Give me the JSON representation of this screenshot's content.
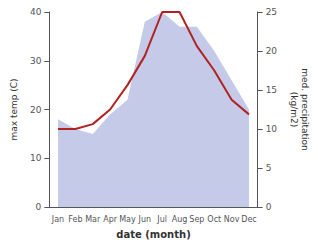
{
  "chart_data": {
    "type": "line",
    "categories": [
      "Jan",
      "Feb",
      "Mar",
      "Apr",
      "May",
      "Jun",
      "Jul",
      "Aug",
      "Sep",
      "Oct",
      "Nov",
      "Dec"
    ],
    "series": [
      {
        "type": "area",
        "color": "#b0b8e0",
        "values": [
          18,
          16,
          15,
          19,
          22,
          38,
          40,
          37,
          37,
          32,
          26,
          20
        ]
      },
      {
        "type": "line",
        "color": "#b22222",
        "values": [
          16,
          16,
          17,
          20,
          25,
          31,
          40,
          40,
          33,
          28,
          22,
          19
        ]
      }
    ],
    "xlabel": "date (month)",
    "ylabel": "max temp (C)",
    "y2label": "med. precipitation\n(kg/m2)",
    "ylim": [
      0,
      40
    ],
    "yticks": [
      0,
      10,
      20,
      30,
      40
    ],
    "y2lim": [
      0,
      25
    ],
    "y2ticks": [
      0,
      5,
      10,
      15,
      20,
      25
    ],
    "grid": false
  }
}
